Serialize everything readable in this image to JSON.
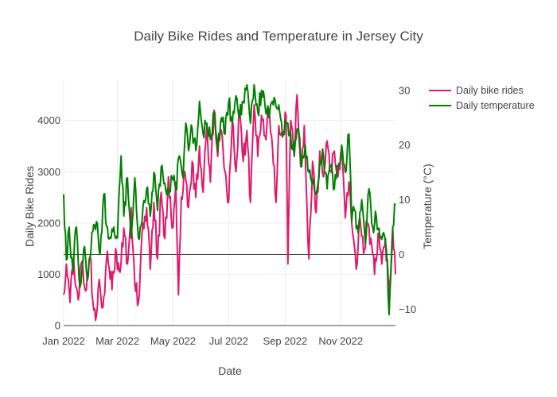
{
  "chart_data": {
    "type": "line",
    "title": "Daily Bike Rides and Temperature in Jersey City",
    "xlabel": "Date",
    "ylabel_left": "Daily Bike Rides",
    "ylabel_right": "Temperature (°C)",
    "x_start": "2022-01-01",
    "x_end": "2022-12-31",
    "x_ticks": [
      "Jan 2022",
      "Mar 2022",
      "May 2022",
      "Jul 2022",
      "Sep 2022",
      "Nov 2022"
    ],
    "y_left_range": [
      0,
      4800
    ],
    "y_left_ticks": [
      0,
      1000,
      2000,
      3000,
      4000
    ],
    "y_right_range": [
      -13,
      32
    ],
    "y_right_ticks": [
      -10,
      0,
      10,
      20,
      30
    ],
    "grid": true,
    "legend_position": "top-right",
    "series": [
      {
        "name": "Daily bike rides",
        "axis": "left",
        "color": "#e0196b",
        "keypoints": [
          [
            "2022-01-01",
            600
          ],
          [
            "2022-01-04",
            1200
          ],
          [
            "2022-01-08",
            450
          ],
          [
            "2022-01-12",
            1300
          ],
          [
            "2022-01-17",
            500
          ],
          [
            "2022-01-21",
            1250
          ],
          [
            "2022-01-26",
            700
          ],
          [
            "2022-01-30",
            1350
          ],
          [
            "2022-02-03",
            300
          ],
          [
            "2022-02-05",
            100
          ],
          [
            "2022-02-09",
            900
          ],
          [
            "2022-02-13",
            350
          ],
          [
            "2022-02-18",
            1450
          ],
          [
            "2022-02-23",
            700
          ],
          [
            "2022-02-27",
            1500
          ],
          [
            "2022-03-03",
            1050
          ],
          [
            "2022-03-08",
            1900
          ],
          [
            "2022-03-12",
            1200
          ],
          [
            "2022-03-16",
            2300
          ],
          [
            "2022-03-20",
            800
          ],
          [
            "2022-03-24",
            450
          ],
          [
            "2022-03-28",
            1800
          ],
          [
            "2022-04-02",
            2300
          ],
          [
            "2022-04-06",
            1100
          ],
          [
            "2022-04-10",
            2400
          ],
          [
            "2022-04-14",
            1300
          ],
          [
            "2022-04-18",
            2600
          ],
          [
            "2022-04-22",
            1700
          ],
          [
            "2022-04-26",
            2900
          ],
          [
            "2022-04-30",
            1900
          ],
          [
            "2022-05-04",
            2800
          ],
          [
            "2022-05-07",
            600
          ],
          [
            "2022-05-10",
            2500
          ],
          [
            "2022-05-14",
            3000
          ],
          [
            "2022-05-18",
            2300
          ],
          [
            "2022-05-22",
            3200
          ],
          [
            "2022-05-26",
            2500
          ],
          [
            "2022-05-30",
            3500
          ],
          [
            "2022-06-03",
            2600
          ],
          [
            "2022-06-07",
            3900
          ],
          [
            "2022-06-11",
            2800
          ],
          [
            "2022-06-15",
            4200
          ],
          [
            "2022-06-19",
            3300
          ],
          [
            "2022-06-23",
            3800
          ],
          [
            "2022-06-27",
            3000
          ],
          [
            "2022-07-01",
            2400
          ],
          [
            "2022-07-05",
            4000
          ],
          [
            "2022-07-09",
            3000
          ],
          [
            "2022-07-13",
            4200
          ],
          [
            "2022-07-17",
            3200
          ],
          [
            "2022-07-21",
            3800
          ],
          [
            "2022-07-25",
            2400
          ],
          [
            "2022-07-29",
            4300
          ],
          [
            "2022-08-02",
            3300
          ],
          [
            "2022-08-06",
            4100
          ],
          [
            "2022-08-10",
            3700
          ],
          [
            "2022-08-14",
            4200
          ],
          [
            "2022-08-18",
            3500
          ],
          [
            "2022-08-22",
            2400
          ],
          [
            "2022-08-25",
            3900
          ],
          [
            "2022-08-29",
            3700
          ],
          [
            "2022-09-02",
            4100
          ],
          [
            "2022-09-04",
            1200
          ],
          [
            "2022-09-07",
            4000
          ],
          [
            "2022-09-11",
            3300
          ],
          [
            "2022-09-14",
            4500
          ],
          [
            "2022-09-18",
            3100
          ],
          [
            "2022-09-22",
            3900
          ],
          [
            "2022-09-27",
            1300
          ],
          [
            "2022-10-01",
            3200
          ],
          [
            "2022-10-05",
            2200
          ],
          [
            "2022-10-09",
            3400
          ],
          [
            "2022-10-13",
            2900
          ],
          [
            "2022-10-17",
            3600
          ],
          [
            "2022-10-21",
            3000
          ],
          [
            "2022-10-25",
            3400
          ],
          [
            "2022-10-29",
            2900
          ],
          [
            "2022-11-02",
            3400
          ],
          [
            "2022-11-06",
            2100
          ],
          [
            "2022-11-10",
            2800
          ],
          [
            "2022-11-14",
            1800
          ],
          [
            "2022-11-18",
            1100
          ],
          [
            "2022-11-22",
            2100
          ],
          [
            "2022-11-26",
            1400
          ],
          [
            "2022-11-30",
            2000
          ],
          [
            "2022-12-04",
            1700
          ],
          [
            "2022-12-08",
            1000
          ],
          [
            "2022-12-12",
            1800
          ],
          [
            "2022-12-16",
            1200
          ],
          [
            "2022-12-20",
            1700
          ],
          [
            "2022-12-24",
            500
          ],
          [
            "2022-12-28",
            1900
          ],
          [
            "2022-12-31",
            1000
          ]
        ]
      },
      {
        "name": "Daily temperature",
        "axis": "right",
        "color": "#008000",
        "keypoints": [
          [
            "2022-01-01",
            11
          ],
          [
            "2022-01-04",
            -1
          ],
          [
            "2022-01-07",
            5
          ],
          [
            "2022-01-11",
            -3
          ],
          [
            "2022-01-15",
            5
          ],
          [
            "2022-01-19",
            -6
          ],
          [
            "2022-01-23",
            1
          ],
          [
            "2022-01-28",
            -4
          ],
          [
            "2022-02-01",
            4
          ],
          [
            "2022-02-06",
            6
          ],
          [
            "2022-02-10",
            0
          ],
          [
            "2022-02-14",
            11
          ],
          [
            "2022-02-18",
            5
          ],
          [
            "2022-02-22",
            3
          ],
          [
            "2022-02-25",
            5
          ],
          [
            "2022-03-01",
            3
          ],
          [
            "2022-03-05",
            18
          ],
          [
            "2022-03-08",
            7
          ],
          [
            "2022-03-12",
            14
          ],
          [
            "2022-03-16",
            3
          ],
          [
            "2022-03-20",
            14
          ],
          [
            "2022-03-24",
            3
          ],
          [
            "2022-03-28",
            6
          ],
          [
            "2022-04-02",
            12
          ],
          [
            "2022-04-06",
            7
          ],
          [
            "2022-04-10",
            15
          ],
          [
            "2022-04-14",
            8
          ],
          [
            "2022-04-18",
            16
          ],
          [
            "2022-04-22",
            13
          ],
          [
            "2022-04-26",
            11
          ],
          [
            "2022-04-30",
            14
          ],
          [
            "2022-05-04",
            12
          ],
          [
            "2022-05-08",
            18
          ],
          [
            "2022-05-12",
            14
          ],
          [
            "2022-05-15",
            24
          ],
          [
            "2022-05-18",
            19
          ],
          [
            "2022-05-22",
            23
          ],
          [
            "2022-05-26",
            19
          ],
          [
            "2022-05-30",
            28
          ],
          [
            "2022-06-03",
            22
          ],
          [
            "2022-06-07",
            24
          ],
          [
            "2022-06-11",
            21
          ],
          [
            "2022-06-15",
            26
          ],
          [
            "2022-06-19",
            19
          ],
          [
            "2022-06-23",
            25
          ],
          [
            "2022-06-27",
            22
          ],
          [
            "2022-07-01",
            28
          ],
          [
            "2022-07-05",
            24
          ],
          [
            "2022-07-09",
            29
          ],
          [
            "2022-07-13",
            25
          ],
          [
            "2022-07-17",
            28
          ],
          [
            "2022-07-21",
            31
          ],
          [
            "2022-07-25",
            24
          ],
          [
            "2022-07-29",
            31
          ],
          [
            "2022-08-02",
            26
          ],
          [
            "2022-08-06",
            30
          ],
          [
            "2022-08-10",
            27
          ],
          [
            "2022-08-14",
            25
          ],
          [
            "2022-08-18",
            28
          ],
          [
            "2022-08-22",
            27
          ],
          [
            "2022-08-26",
            26
          ],
          [
            "2022-08-30",
            22
          ],
          [
            "2022-09-03",
            24
          ],
          [
            "2022-09-07",
            22
          ],
          [
            "2022-09-11",
            18
          ],
          [
            "2022-09-15",
            23
          ],
          [
            "2022-09-19",
            16
          ],
          [
            "2022-09-23",
            20
          ],
          [
            "2022-09-27",
            15
          ],
          [
            "2022-10-01",
            13
          ],
          [
            "2022-10-05",
            11
          ],
          [
            "2022-10-09",
            17
          ],
          [
            "2022-10-13",
            18
          ],
          [
            "2022-10-17",
            12
          ],
          [
            "2022-10-21",
            16
          ],
          [
            "2022-10-25",
            12
          ],
          [
            "2022-10-29",
            16
          ],
          [
            "2022-11-02",
            20
          ],
          [
            "2022-11-06",
            15
          ],
          [
            "2022-11-10",
            22
          ],
          [
            "2022-11-13",
            6
          ],
          [
            "2022-11-16",
            8
          ],
          [
            "2022-11-20",
            4
          ],
          [
            "2022-11-24",
            10
          ],
          [
            "2022-11-28",
            2
          ],
          [
            "2022-12-02",
            12
          ],
          [
            "2022-12-06",
            5
          ],
          [
            "2022-12-10",
            7
          ],
          [
            "2022-12-14",
            3
          ],
          [
            "2022-12-18",
            4
          ],
          [
            "2022-12-21",
            1
          ],
          [
            "2022-12-24",
            -11
          ],
          [
            "2022-12-28",
            5
          ],
          [
            "2022-12-31",
            9
          ]
        ]
      }
    ]
  }
}
